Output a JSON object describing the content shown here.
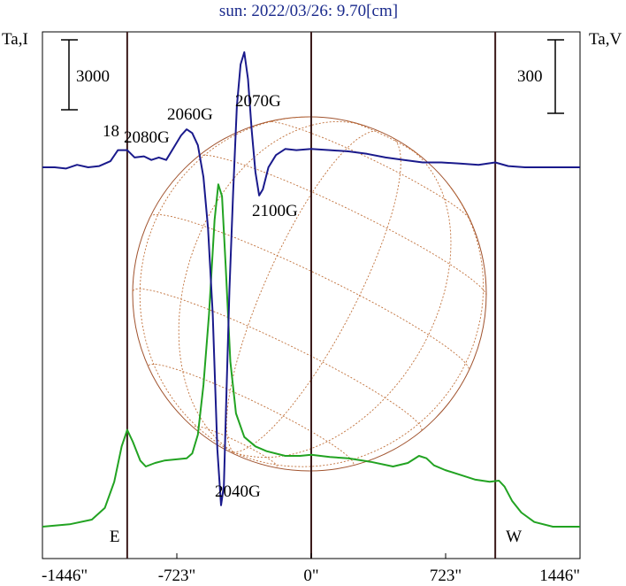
{
  "title": "sun: 2022/03/26: 9.70[cm]",
  "chart_data": {
    "type": "line",
    "title": "sun: 2022/03/26: 9.70[cm]",
    "xlabel": "",
    "ylabel_left": "Ta,I",
    "ylabel_right": "Ta,V",
    "x_ticks": [
      -1446,
      -723,
      0,
      723,
      1446
    ],
    "x_tick_labels": [
      "-1446\"",
      "-723\"",
      "0\"",
      "723\"",
      "1446\""
    ],
    "xlim": [
      -1446,
      1446
    ],
    "scale_bar_left": "3000",
    "scale_bar_right": "300",
    "limb_markers": [
      {
        "x": -990,
        "label": "E"
      },
      {
        "x": 990,
        "label": "W"
      }
    ],
    "center_marker": 0,
    "annotations": [
      "18",
      "2080G",
      "2060G",
      "2070G",
      "2100G",
      "2040G"
    ],
    "series": [
      {
        "name": "I",
        "color": "#22a322",
        "points": [
          [
            -1446,
            0
          ],
          [
            -1300,
            100
          ],
          [
            -1180,
            300
          ],
          [
            -1110,
            800
          ],
          [
            -1060,
            1900
          ],
          [
            -1020,
            3400
          ],
          [
            -990,
            4100
          ],
          [
            -960,
            3600
          ],
          [
            -920,
            2800
          ],
          [
            -890,
            2550
          ],
          [
            -840,
            2700
          ],
          [
            -790,
            2800
          ],
          [
            -730,
            2850
          ],
          [
            -670,
            2900
          ],
          [
            -640,
            3100
          ],
          [
            -610,
            3900
          ],
          [
            -580,
            6000
          ],
          [
            -550,
            9000
          ],
          [
            -520,
            13000
          ],
          [
            -500,
            14500
          ],
          [
            -480,
            14000
          ],
          [
            -460,
            11000
          ],
          [
            -435,
            7000
          ],
          [
            -405,
            4800
          ],
          [
            -360,
            3800
          ],
          [
            -300,
            3400
          ],
          [
            -240,
            3200
          ],
          [
            -140,
            3000
          ],
          [
            -60,
            3000
          ],
          [
            0,
            3050
          ],
          [
            100,
            2950
          ],
          [
            200,
            2900
          ],
          [
            320,
            2750
          ],
          [
            440,
            2550
          ],
          [
            520,
            2700
          ],
          [
            580,
            3000
          ],
          [
            620,
            2900
          ],
          [
            660,
            2600
          ],
          [
            720,
            2400
          ],
          [
            800,
            2200
          ],
          [
            880,
            2000
          ],
          [
            960,
            1900
          ],
          [
            1010,
            1950
          ],
          [
            1040,
            1700
          ],
          [
            1080,
            1100
          ],
          [
            1130,
            600
          ],
          [
            1200,
            200
          ],
          [
            1300,
            0
          ],
          [
            1446,
            0
          ]
        ]
      },
      {
        "name": "V",
        "color": "#1a1a8c",
        "points": [
          [
            -1446,
            0
          ],
          [
            -1380,
            0
          ],
          [
            -1320,
            -5
          ],
          [
            -1260,
            10
          ],
          [
            -1200,
            0
          ],
          [
            -1140,
            5
          ],
          [
            -1080,
            25
          ],
          [
            -1040,
            70
          ],
          [
            -990,
            70
          ],
          [
            -950,
            40
          ],
          [
            -900,
            45
          ],
          [
            -860,
            30
          ],
          [
            -820,
            40
          ],
          [
            -780,
            30
          ],
          [
            -740,
            80
          ],
          [
            -700,
            130
          ],
          [
            -670,
            155
          ],
          [
            -640,
            140
          ],
          [
            -610,
            90
          ],
          [
            -580,
            -40
          ],
          [
            -555,
            -250
          ],
          [
            -530,
            -600
          ],
          [
            -505,
            -1150
          ],
          [
            -485,
            -1380
          ],
          [
            -470,
            -1300
          ],
          [
            -455,
            -900
          ],
          [
            -440,
            -500
          ],
          [
            -420,
            -100
          ],
          [
            -400,
            250
          ],
          [
            -380,
            420
          ],
          [
            -360,
            470
          ],
          [
            -340,
            360
          ],
          [
            -320,
            150
          ],
          [
            -300,
            -20
          ],
          [
            -280,
            -115
          ],
          [
            -260,
            -90
          ],
          [
            -230,
            0
          ],
          [
            -190,
            50
          ],
          [
            -140,
            75
          ],
          [
            -80,
            70
          ],
          [
            0,
            75
          ],
          [
            100,
            70
          ],
          [
            200,
            65
          ],
          [
            300,
            55
          ],
          [
            400,
            40
          ],
          [
            500,
            30
          ],
          [
            600,
            20
          ],
          [
            700,
            20
          ],
          [
            800,
            15
          ],
          [
            900,
            10
          ],
          [
            990,
            20
          ],
          [
            1060,
            5
          ],
          [
            1150,
            0
          ],
          [
            1250,
            0
          ],
          [
            1350,
            0
          ],
          [
            1446,
            0
          ]
        ]
      }
    ]
  }
}
